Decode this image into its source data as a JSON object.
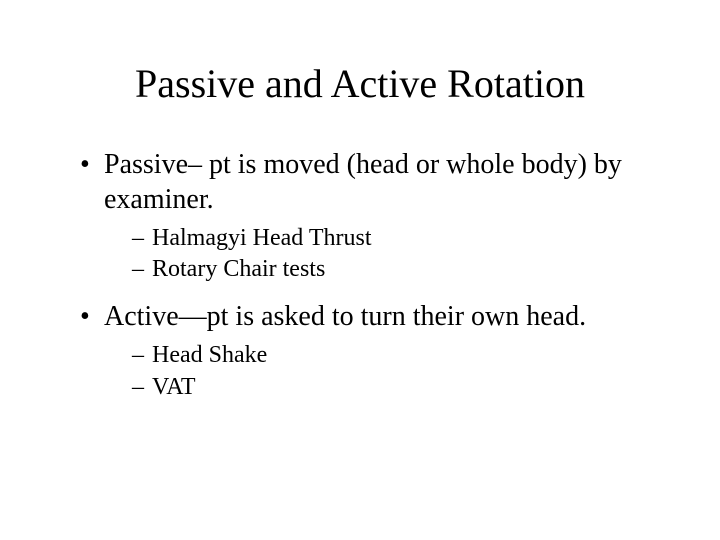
{
  "title": "Passive and Active Rotation",
  "bullets": [
    {
      "text": "Passive– pt is moved (head or whole body) by examiner.",
      "sub": [
        "Halmagyi Head Thrust",
        "Rotary Chair tests"
      ]
    },
    {
      "text": "Active—pt is asked to turn their own head.",
      "sub": [
        "Head Shake",
        "VAT"
      ]
    }
  ],
  "style": {
    "background_color": "#ffffff",
    "text_color": "#000000",
    "font_family": "Times New Roman",
    "title_fontsize_pt": 30,
    "level1_fontsize_pt": 21,
    "level2_fontsize_pt": 18
  }
}
